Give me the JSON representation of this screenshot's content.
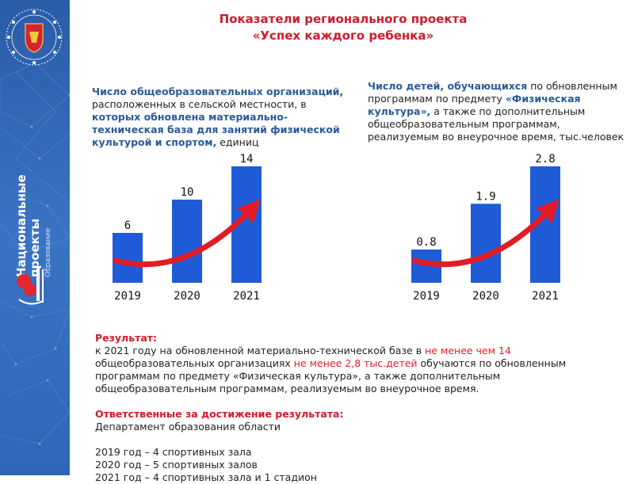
{
  "title": {
    "line1": "Показатели регионального проекта",
    "line2": "«Успех каждого ребенка»"
  },
  "sidebar": {
    "vertical_title_line1": "Национальные",
    "vertical_title_line2": "проекты",
    "vertical_subtitle": "Образование"
  },
  "left_desc": {
    "p1": "Число общеобразовательных организаций,",
    "p2": " расположенных в сельской местности, в ",
    "p3": "которых обновлена материально-техническая база для занятий физической культурой и спортом,",
    "p4": " единиц"
  },
  "right_desc": {
    "p1": "Число детей, обучающихся",
    "p2": " по обновленным программам по предмету ",
    "p3": "«Физическая культура»,",
    "p4": " а также по дополнительным общеобразовательным программам, реализуемым во внеурочное время, тыс.человек"
  },
  "chart_data": [
    {
      "type": "bar",
      "categories": [
        "2019",
        "2020",
        "2021"
      ],
      "values": [
        6,
        10,
        14
      ],
      "labels": [
        "6",
        "10",
        "14"
      ],
      "ylim": [
        0,
        14
      ],
      "bar_color": "#1f5bd6",
      "arrow_color": "#e21c26"
    },
    {
      "type": "bar",
      "categories": [
        "2019",
        "2020",
        "2021"
      ],
      "values": [
        0.8,
        1.9,
        2.8
      ],
      "labels": [
        "0.8",
        "1.9",
        "2.8"
      ],
      "ylim": [
        0,
        2.8
      ],
      "bar_color": "#1f5bd6",
      "arrow_color": "#e21c26"
    }
  ],
  "result": {
    "heading": "Результат:",
    "t1": "к 2021 году на обновленной материально-технической базе в ",
    "t2": "не менее чем 14",
    "t3": " общеобразовательных организациях ",
    "t4": "не менее 2,8 тыс.детей",
    "t5": " обучаются по обновленным программам по предмету «Физическая культура», а также дополнительным общеобразовательным программам, реализуемым во внеурочное время.",
    "resp_heading": "Ответственные за достижение результата:",
    "resp_text": "Департамент образования области",
    "y2019": "2019 год – 4 спортивных зала",
    "y2020": "2020 год – 5 спортивных залов",
    "y2021": "2021 год – 4 спортивных зала и 1 стадион"
  },
  "colors": {
    "title": "#d01b2a",
    "highlight_blue": "#2b5a98",
    "sidebar_blue": "#2f66b8",
    "bar_blue": "#1f5bd6",
    "accent_red": "#e21c26"
  }
}
